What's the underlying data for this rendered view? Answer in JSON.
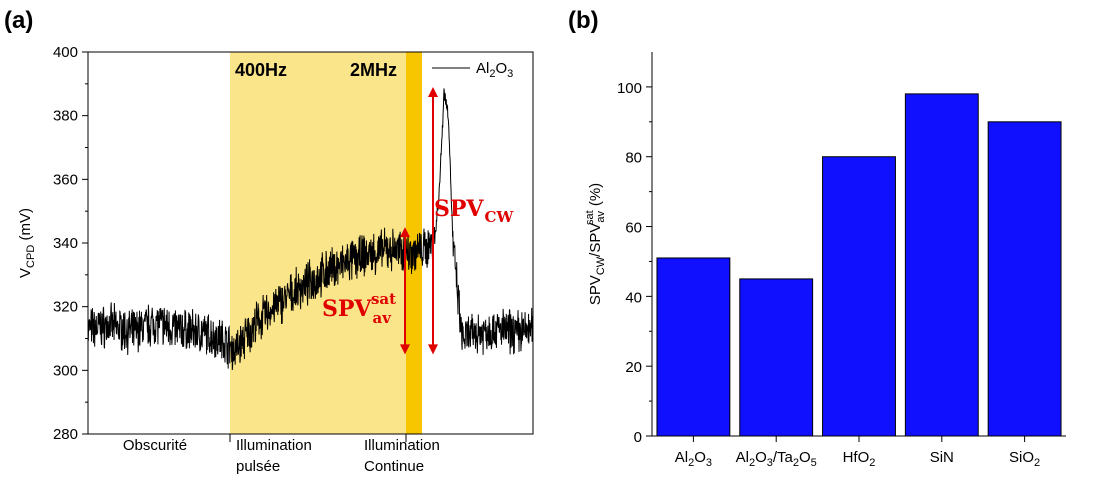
{
  "chart_data": [
    {
      "type": "line",
      "panel_label": "(a)",
      "ylabel": {
        "main": "V",
        "sub": "CPD",
        "tail": " (mV)"
      },
      "ylim": [
        280,
        400
      ],
      "yticks": [
        280,
        300,
        320,
        340,
        360,
        380,
        400
      ],
      "x_regions": [
        {
          "line1": "Obscurité",
          "line2": ""
        },
        {
          "line1": "Illumination",
          "line2": "pulsée"
        },
        {
          "line1": "Illumination",
          "line2": "Continue"
        }
      ],
      "bands": [
        {
          "label": "400Hz",
          "color": "#fbe58b"
        },
        {
          "label": "2MHz",
          "color": "#f7c600"
        }
      ],
      "legend": {
        "main": "Al",
        "sub1": "2",
        "mid": "O",
        "sub2": "3",
        "position": "top-right"
      },
      "series": [
        {
          "color": "#000000",
          "t": [
            0,
            5,
            10,
            15,
            20,
            25,
            30,
            33,
            38,
            42,
            48,
            55,
            62,
            68,
            72,
            76,
            78,
            79,
            79.6,
            80,
            81,
            82,
            84,
            88,
            92,
            96,
            100
          ],
          "v": [
            313,
            314,
            312,
            315,
            313,
            312,
            310,
            306,
            315,
            320,
            326,
            332,
            336,
            338,
            337,
            338,
            342,
            358,
            375,
            388,
            380,
            340,
            310,
            312,
            313,
            312,
            313
          ]
        }
      ],
      "annotations": [
        {
          "main": "SPV",
          "sub": "av",
          "sup": "sat",
          "from": 305,
          "to": 345
        },
        {
          "main": "SPV",
          "sub": "CW",
          "from": 305,
          "to": 389
        }
      ]
    },
    {
      "type": "bar",
      "panel_label": "(b)",
      "ylabel": {
        "a": "SPV",
        "a_sub": "CW",
        "slash": "/",
        "b": "SPV",
        "b_sub": "av",
        "b_sup": "sat",
        "tail": " (%)"
      },
      "ylim": [
        0,
        110
      ],
      "yticks": [
        0,
        20,
        40,
        60,
        80,
        100
      ],
      "bar_color": "#1010ff",
      "categories": [
        [
          {
            "t": "Al"
          },
          {
            "t": "2",
            "s": "sub"
          },
          {
            "t": "O"
          },
          {
            "t": "3",
            "s": "sub"
          }
        ],
        [
          {
            "t": "Al"
          },
          {
            "t": "2",
            "s": "sub"
          },
          {
            "t": "O"
          },
          {
            "t": "3",
            "s": "sub"
          },
          {
            "t": "/Ta"
          },
          {
            "t": "2",
            "s": "sub"
          },
          {
            "t": "O"
          },
          {
            "t": "5",
            "s": "sub"
          }
        ],
        [
          {
            "t": "HfO"
          },
          {
            "t": "2",
            "s": "sub"
          }
        ],
        [
          {
            "t": "SiN"
          }
        ],
        [
          {
            "t": "SiO"
          },
          {
            "t": "2",
            "s": "sub"
          }
        ]
      ],
      "values": [
        51,
        45,
        80,
        98,
        90
      ]
    }
  ]
}
